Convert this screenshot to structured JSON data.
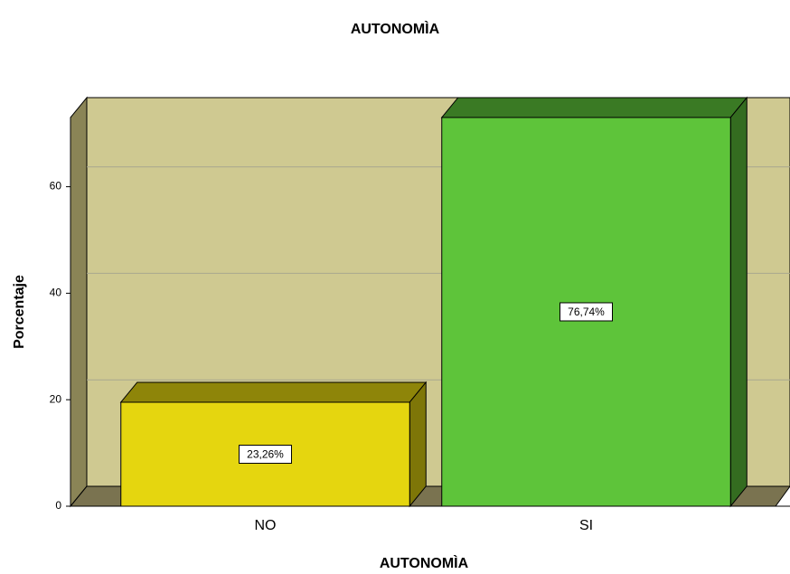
{
  "chart_data": {
    "type": "bar3d",
    "title": "AUTONOMÌA",
    "x_label": "AUTONOMÌA",
    "y_label": "Porcentaje",
    "categories": [
      "NO",
      "SI"
    ],
    "values": [
      23.26,
      76.74
    ],
    "value_labels": [
      "23,26%",
      "76,74%"
    ],
    "colors": [
      "#e5d60f",
      "#5ec43a"
    ],
    "ylim": [
      0,
      73
    ],
    "yticks": [
      0,
      20,
      40,
      60
    ],
    "grid": true
  }
}
